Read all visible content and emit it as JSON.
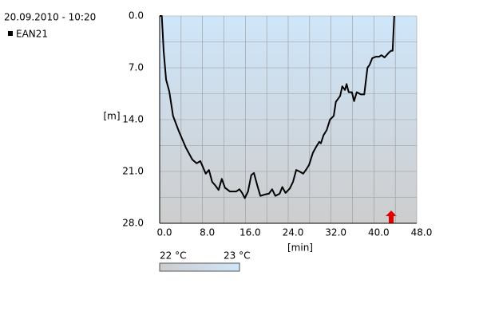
{
  "chart_data": {
    "type": "line",
    "title": "20.09.2010 - 10:20",
    "x_label": "[min]",
    "y_label": "[m]",
    "x": [
      0,
      0.4,
      0.75,
      1.2,
      1.8,
      2.5,
      3.6,
      4.9,
      6.1,
      6.9,
      7.6,
      8.6,
      9.2,
      9.8,
      10.4,
      11.0,
      11.6,
      12.2,
      13.1,
      14.3,
      14.9,
      15.4,
      15.9,
      16.5,
      17.1,
      17.6,
      18.2,
      18.8,
      19.7,
      20.4,
      21.0,
      21.6,
      22.4,
      22.9,
      23.5,
      24.3,
      24.9,
      25.5,
      26.1,
      26.8,
      27.4,
      27.9,
      28.6,
      29.2,
      29.8,
      30.1,
      30.6,
      31.2,
      31.8,
      32.5,
      32.9,
      33.7,
      34.1,
      34.6,
      34.9,
      35.3,
      35.9,
      36.3,
      36.8,
      37.6,
      38.2,
      38.8,
      39.2,
      39.7,
      40.4,
      41.0,
      41.4,
      42.0,
      42.8,
      43.2,
      43.5,
      43.8
    ],
    "series": [
      {
        "name": "EAN21",
        "color": "#000000",
        "values": [
          0,
          0,
          4.8,
          8.6,
          10.2,
          13.5,
          15.6,
          17.8,
          19.4,
          19.9,
          19.6,
          21.3,
          20.8,
          22.4,
          22.9,
          23.5,
          22.0,
          23.2,
          23.7,
          23.7,
          23.4,
          23.9,
          24.6,
          23.7,
          21.5,
          21.2,
          22.8,
          24.3,
          24.1,
          24.0,
          23.4,
          24.3,
          24.0,
          23.1,
          23.9,
          23.3,
          22.4,
          20.8,
          21.0,
          21.3,
          20.7,
          20.1,
          18.5,
          17.7,
          17.0,
          17.2,
          16.1,
          15.4,
          14.0,
          13.5,
          11.6,
          10.8,
          9.5,
          10.0,
          9.2,
          10.3,
          10.3,
          11.5,
          10.3,
          10.6,
          10.6,
          7.0,
          6.6,
          5.7,
          5.5,
          5.5,
          5.3,
          5.6,
          4.95,
          4.7,
          4.7,
          0
        ]
      }
    ],
    "xlim": [
      0,
      48
    ],
    "xticks": [
      {
        "value": 0,
        "label": "0.0"
      },
      {
        "value": 8,
        "label": "8.0"
      },
      {
        "value": 16,
        "label": "16.0"
      },
      {
        "value": 24,
        "label": "24.0"
      },
      {
        "value": 32,
        "label": "32.0"
      },
      {
        "value": 40,
        "label": "40.0"
      },
      {
        "value": 48,
        "label": "48.0"
      }
    ],
    "xminor": [
      4,
      12,
      20,
      28,
      36,
      44
    ],
    "ylim": [
      0,
      28
    ],
    "y_inverted": true,
    "yticks": [
      {
        "value": 0,
        "label": "0.0"
      },
      {
        "value": 7,
        "label": "7.0"
      },
      {
        "value": 14,
        "label": "14.0"
      },
      {
        "value": 21,
        "label": "21.0"
      },
      {
        "value": 28,
        "label": "28.0"
      }
    ],
    "yminor": [
      3.5,
      10.5,
      17.5,
      24.5
    ],
    "grid": true,
    "color_scale": {
      "min_label": "22 °C",
      "max_label": "23 °C"
    }
  }
}
